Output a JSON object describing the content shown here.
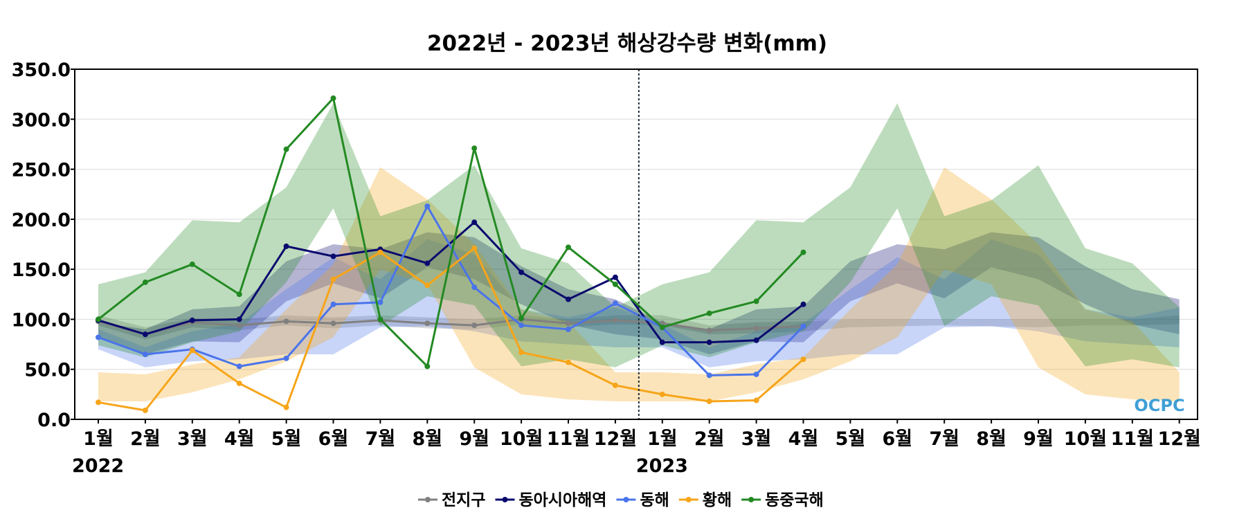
{
  "chart_data": {
    "type": "line",
    "title": "2022년 - 2023년 해상강수량 변화(mm)",
    "xlabel": "",
    "ylabel": "",
    "ylim": [
      0,
      350
    ],
    "yticks": [
      "0.0",
      "50.0",
      "100.0",
      "150.0",
      "200.0",
      "250.0",
      "300.0",
      "350.0"
    ],
    "categories": [
      "1월",
      "2월",
      "3월",
      "4월",
      "5월",
      "6월",
      "7월",
      "8월",
      "9월",
      "10월",
      "11월",
      "12월",
      "1월",
      "2월",
      "3월",
      "4월",
      "5월",
      "6월",
      "7월",
      "8월",
      "9월",
      "10월",
      "11월",
      "12월"
    ],
    "years": [
      "2022",
      "2023"
    ],
    "divider_after_index": 11,
    "grid": "horizontal",
    "legend_position": "bottom",
    "series": [
      {
        "name": "전지구",
        "color": "#808080",
        "values": [
          98,
          85,
          97,
          94,
          98,
          96,
          99,
          96,
          94,
          100,
          96,
          99,
          96,
          89,
          91,
          93,
          null,
          null,
          null,
          null,
          null,
          null,
          null,
          null
        ],
        "band_upper": [
          104,
          92,
          101,
          100,
          104,
          102,
          104,
          102,
          100,
          104,
          100,
          104,
          104,
          94,
          97,
          98,
          100,
          100,
          100,
          100,
          100,
          100,
          100,
          104
        ],
        "band_lower": [
          94,
          80,
          92,
          89,
          94,
          91,
          94,
          91,
          90,
          95,
          92,
          95,
          94,
          85,
          86,
          88,
          92,
          93,
          94,
          93,
          92,
          94,
          94,
          95
        ]
      },
      {
        "name": "동아시아해역",
        "color": "#0a0a6e",
        "values": [
          99,
          85,
          99,
          100,
          173,
          163,
          170,
          156,
          197,
          147,
          120,
          142,
          77,
          77,
          79,
          115,
          null,
          null,
          null,
          null,
          null,
          null,
          null,
          null
        ],
        "band_upper": [
          97,
          90,
          110,
          113,
          158,
          175,
          170,
          187,
          182,
          153,
          130,
          120,
          97,
          90,
          110,
          113,
          158,
          175,
          170,
          187,
          182,
          153,
          130,
          120
        ],
        "band_lower": [
          82,
          65,
          78,
          77,
          118,
          136,
          121,
          152,
          140,
          115,
          95,
          85,
          80,
          65,
          78,
          77,
          118,
          136,
          121,
          152,
          140,
          115,
          95,
          85
        ]
      },
      {
        "name": "동해",
        "color": "#4a74ea",
        "values": [
          82,
          65,
          70,
          53,
          61,
          115,
          117,
          213,
          132,
          94,
          90,
          116,
          92,
          44,
          45,
          93,
          null,
          null,
          null,
          null,
          null,
          null,
          null,
          null
        ],
        "band_upper": [
          90,
          72,
          88,
          96,
          130,
          162,
          140,
          180,
          165,
          110,
          102,
          112,
          95,
          72,
          88,
          96,
          130,
          162,
          140,
          180,
          165,
          110,
          102,
          112
        ],
        "band_lower": [
          70,
          52,
          58,
          60,
          65,
          65,
          92,
          93,
          88,
          78,
          75,
          72,
          72,
          52,
          58,
          60,
          65,
          65,
          92,
          93,
          88,
          78,
          75,
          72
        ]
      },
      {
        "name": "황해",
        "color": "#f6a51a",
        "values": [
          17,
          9,
          69,
          36,
          12,
          140,
          167,
          134,
          171,
          67,
          57,
          34,
          25,
          18,
          19,
          60,
          null,
          null,
          null,
          null,
          null,
          null,
          null,
          null
        ],
        "band_upper": [
          47,
          45,
          55,
          62,
          110,
          155,
          252,
          220,
          175,
          110,
          98,
          47,
          47,
          45,
          55,
          62,
          110,
          155,
          252,
          220,
          175,
          110,
          98,
          47
        ],
        "band_lower": [
          18,
          18,
          27,
          40,
          58,
          82,
          150,
          135,
          52,
          25,
          20,
          18,
          18,
          18,
          27,
          40,
          58,
          82,
          150,
          135,
          52,
          25,
          20,
          18
        ]
      },
      {
        "name": "동중국해",
        "color": "#238a23",
        "values": [
          100,
          137,
          155,
          125,
          270,
          321,
          100,
          53,
          271,
          101,
          172,
          135,
          92,
          106,
          118,
          167,
          null,
          null,
          null,
          null,
          null,
          null,
          null,
          null
        ],
        "band_upper": [
          135,
          147,
          199,
          197,
          232,
          316,
          203,
          219,
          254,
          171,
          156,
          112,
          135,
          147,
          199,
          197,
          232,
          316,
          203,
          219,
          254,
          171,
          156,
          112
        ],
        "band_lower": [
          74,
          62,
          77,
          88,
          137,
          211,
          93,
          123,
          114,
          53,
          60,
          52,
          74,
          62,
          77,
          88,
          137,
          211,
          93,
          123,
          114,
          53,
          60,
          52
        ]
      }
    ],
    "watermark": "OCPC"
  }
}
